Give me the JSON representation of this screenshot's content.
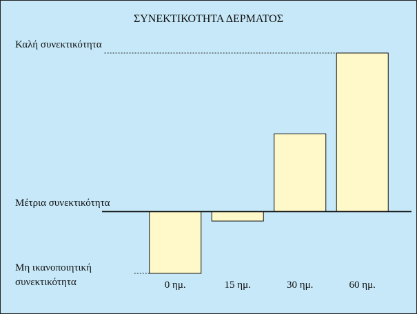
{
  "chart_data": {
    "type": "bar",
    "title": "ΣΥΝΕΚΤΙΚΟΤΗΤΑ ΔΕΡΜΑΤΟΣ",
    "categories": [
      "0 ημ.",
      "15 ημ.",
      "30 ημ.",
      "60 ημ."
    ],
    "values": [
      -39,
      -6,
      49,
      100
    ],
    "color": "#fff8c8",
    "ylim": [
      -39,
      100
    ],
    "yticks": [
      {
        "value": 100,
        "label": "Καλή συνεκτικότητα"
      },
      {
        "value": 0,
        "label": "Μέτρια συνεκτικότητα"
      },
      {
        "value": -39,
        "label": "Μη ικανοποιητική\nσυνεκτικότητα"
      }
    ],
    "background": "#c6e8f8"
  }
}
